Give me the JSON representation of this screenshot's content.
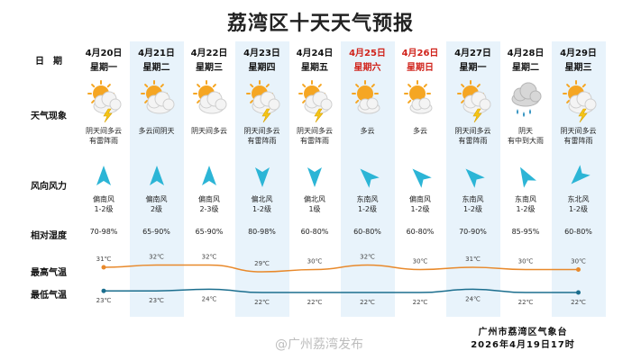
{
  "title": "荔湾区十天天气预报",
  "row_labels": {
    "date": "日　期",
    "weather": "天气现象",
    "wind": "风向风力",
    "humidity": "相对湿度",
    "high": "最高气温",
    "low": "最低气温"
  },
  "days": [
    {
      "date": "4月20日",
      "weekday": "星期一",
      "weekend": false,
      "icon": "sun-cloud-thunder-icon",
      "condition": "阴天间多云\n有雷阵雨",
      "wind_dir": "偏南风",
      "wind_level": "1-2级",
      "arrow_deg": 0,
      "humidity": "70-98%",
      "high": "31℃",
      "low": "23℃"
    },
    {
      "date": "4月21日",
      "weekday": "星期二",
      "weekend": false,
      "icon": "sun-cloud-icon",
      "condition": "多云间阴天",
      "wind_dir": "偏南风",
      "wind_level": "2级",
      "arrow_deg": 0,
      "humidity": "65-90%",
      "high": "32℃",
      "low": "23℃"
    },
    {
      "date": "4月22日",
      "weekday": "星期三",
      "weekend": false,
      "icon": "sun-cloud-icon",
      "condition": "阴天间多云",
      "wind_dir": "偏南风",
      "wind_level": "2-3级",
      "arrow_deg": 0,
      "humidity": "65-90%",
      "high": "32℃",
      "low": "24℃"
    },
    {
      "date": "4月23日",
      "weekday": "星期四",
      "weekend": false,
      "icon": "sun-cloud-thunder-icon",
      "condition": "阴天间多云\n有雷阵雨",
      "wind_dir": "偏北风",
      "wind_level": "1-2级",
      "arrow_deg": 180,
      "humidity": "80-98%",
      "high": "29℃",
      "low": "22℃"
    },
    {
      "date": "4月24日",
      "weekday": "星期五",
      "weekend": false,
      "icon": "sun-cloud-thunder-icon",
      "condition": "阴天间多云\n有雷阵雨",
      "wind_dir": "偏北风",
      "wind_level": "1级",
      "arrow_deg": 180,
      "humidity": "60-80%",
      "high": "30℃",
      "low": "22℃"
    },
    {
      "date": "4月25日",
      "weekday": "星期六",
      "weekend": true,
      "icon": "sun-cloud-small-icon",
      "condition": "多云",
      "wind_dir": "东南风",
      "wind_level": "1-2级",
      "arrow_deg": -45,
      "humidity": "60-80%",
      "high": "32℃",
      "low": "22℃"
    },
    {
      "date": "4月26日",
      "weekday": "星期日",
      "weekend": true,
      "icon": "sun-cloud-small-icon",
      "condition": "多云",
      "wind_dir": "偏南风",
      "wind_level": "1-2级",
      "arrow_deg": -45,
      "humidity": "60-80%",
      "high": "30℃",
      "low": "22℃"
    },
    {
      "date": "4月27日",
      "weekday": "星期一",
      "weekend": false,
      "icon": "sun-cloud-thunder-icon",
      "condition": "阴天间多云\n有雷阵雨",
      "wind_dir": "东南风",
      "wind_level": "1-2级",
      "arrow_deg": -45,
      "humidity": "70-90%",
      "high": "31℃",
      "low": "24℃"
    },
    {
      "date": "4月28日",
      "weekday": "星期二",
      "weekend": false,
      "icon": "cloud-rain-icon",
      "condition": "阴天\n有中到大雨",
      "wind_dir": "东南风",
      "wind_level": "1-2级",
      "arrow_deg": -30,
      "humidity": "85-95%",
      "high": "30℃",
      "low": "22℃"
    },
    {
      "date": "4月29日",
      "weekday": "星期三",
      "weekend": false,
      "icon": "sun-cloud-thunder-icon",
      "condition": "阴天间多云\n有雷阵雨",
      "wind_dir": "东北风",
      "wind_level": "1-2级",
      "arrow_deg": 225,
      "humidity": "60-80%",
      "high": "30℃",
      "low": "22℃"
    }
  ],
  "high_temps": [
    31,
    32,
    32,
    29,
    30,
    32,
    30,
    31,
    30,
    30
  ],
  "low_temps": [
    23,
    23,
    24,
    22,
    22,
    22,
    22,
    24,
    22,
    22
  ],
  "colors": {
    "high_line": "#e8892b",
    "low_line": "#1b6e8e",
    "arrow": "#2cb5d6",
    "weekend": "#d0231b",
    "stripe": "#e8f3fb"
  },
  "footer": {
    "org": "广州市荔湾区气象台",
    "time": "2026年4月19日17时"
  },
  "watermark": "@广州荔湾发布"
}
